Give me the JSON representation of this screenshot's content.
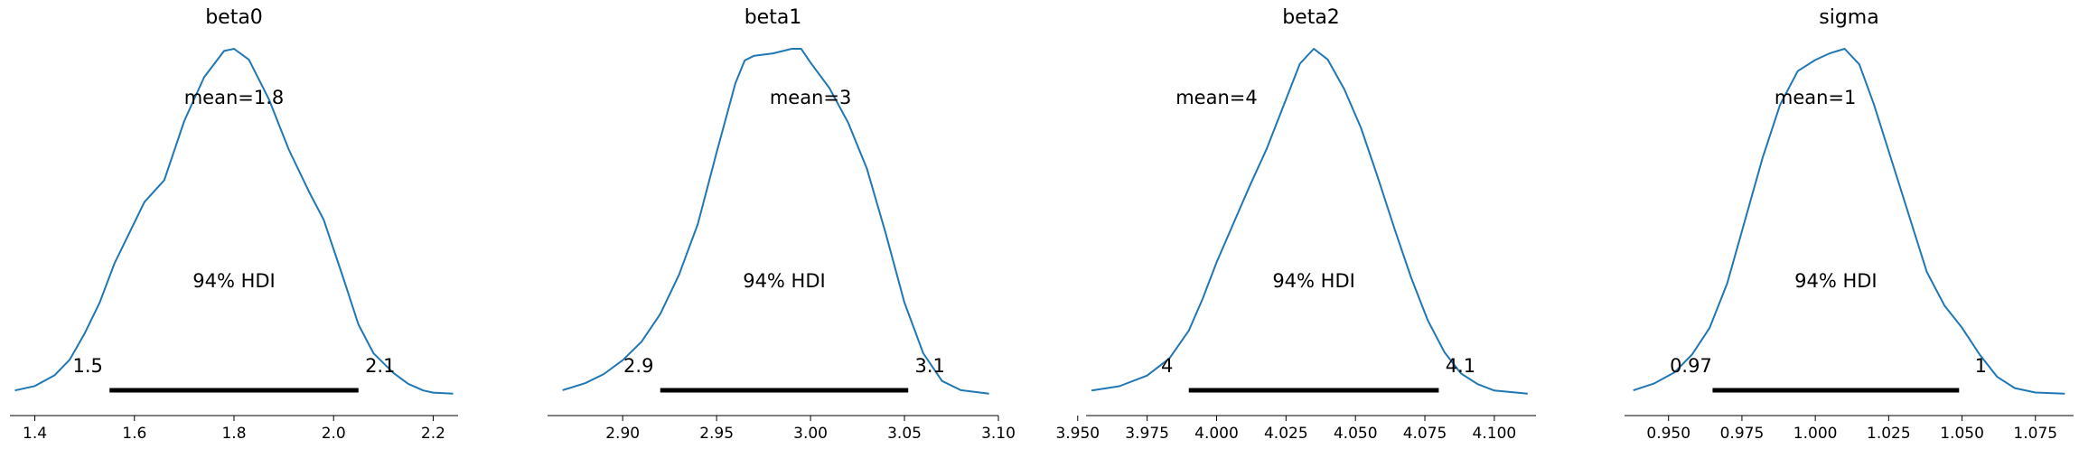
{
  "colors": {
    "line": "#1f77b4",
    "hdi": "#000000"
  },
  "hdi_label": "94% HDI",
  "chart_data": [
    {
      "type": "line",
      "title": "beta0",
      "mean_label": "mean=1.8",
      "mean": 1.8,
      "hdi": [
        1.55,
        2.05
      ],
      "hdi_low_label": "1.5",
      "hdi_high_label": "2.1",
      "xlim": [
        1.35,
        2.25
      ],
      "xticks": [
        1.4,
        1.6,
        1.8,
        2.0,
        2.2
      ],
      "xtick_labels": [
        "1.4",
        "1.6",
        "1.8",
        "2.0",
        "2.2"
      ],
      "x": [
        1.36,
        1.4,
        1.44,
        1.47,
        1.5,
        1.53,
        1.56,
        1.59,
        1.62,
        1.66,
        1.7,
        1.74,
        1.78,
        1.8,
        1.83,
        1.87,
        1.91,
        1.95,
        1.98,
        2.02,
        2.05,
        2.08,
        2.12,
        2.15,
        2.18,
        2.2,
        2.24
      ],
      "density": [
        0.02,
        0.04,
        0.09,
        0.16,
        0.28,
        0.42,
        0.6,
        0.74,
        0.88,
        0.98,
        1.25,
        1.45,
        1.57,
        1.58,
        1.53,
        1.35,
        1.12,
        0.93,
        0.8,
        0.53,
        0.32,
        0.19,
        0.1,
        0.05,
        0.02,
        0.01,
        0.005
      ]
    },
    {
      "type": "line",
      "title": "beta1",
      "mean_label": "mean=3",
      "mean": 3.0,
      "hdi": [
        2.92,
        3.052
      ],
      "hdi_low_label": "2.9",
      "hdi_high_label": "3.1",
      "xlim": [
        2.86,
        3.1
      ],
      "xticks": [
        2.9,
        2.95,
        3.0,
        3.05,
        3.1
      ],
      "xtick_labels": [
        "2.90",
        "2.95",
        "3.00",
        "3.05",
        "3.10"
      ],
      "x": [
        2.868,
        2.88,
        2.89,
        2.9,
        2.91,
        2.92,
        2.93,
        2.94,
        2.95,
        2.96,
        2.965,
        2.97,
        2.98,
        2.99,
        2.995,
        3.0,
        3.01,
        3.02,
        3.03,
        3.04,
        3.05,
        3.06,
        3.07,
        3.08,
        3.095
      ],
      "density": [
        0.02,
        0.05,
        0.09,
        0.15,
        0.23,
        0.35,
        0.52,
        0.74,
        1.05,
        1.35,
        1.45,
        1.47,
        1.48,
        1.5,
        1.5,
        1.44,
        1.33,
        1.18,
        0.98,
        0.7,
        0.4,
        0.18,
        0.06,
        0.02,
        0.005
      ]
    },
    {
      "type": "line",
      "title": "beta2",
      "mean_label": "mean=4",
      "mean": 4.0,
      "hdi": [
        3.99,
        4.08
      ],
      "hdi_low_label": "4",
      "hdi_high_label": "4.1",
      "xlim": [
        3.953,
        4.115
      ],
      "xticks": [
        3.95,
        3.975,
        4.0,
        4.025,
        4.05,
        4.075,
        4.1
      ],
      "xtick_labels": [
        "3.950",
        "3.975",
        "4.000",
        "4.025",
        "4.050",
        "4.075",
        "4.100"
      ],
      "x": [
        3.955,
        3.965,
        3.975,
        3.983,
        3.99,
        3.995,
        4.0,
        4.006,
        4.012,
        4.018,
        4.024,
        4.03,
        4.035,
        4.04,
        4.046,
        4.052,
        4.058,
        4.064,
        4.07,
        4.076,
        4.082,
        4.088,
        4.094,
        4.1,
        4.112
      ],
      "density": [
        0.02,
        0.04,
        0.09,
        0.17,
        0.3,
        0.45,
        0.62,
        0.8,
        0.98,
        1.15,
        1.35,
        1.55,
        1.62,
        1.57,
        1.43,
        1.25,
        1.02,
        0.78,
        0.55,
        0.35,
        0.2,
        0.1,
        0.05,
        0.02,
        0.005
      ]
    },
    {
      "type": "line",
      "title": "sigma",
      "mean_label": "mean=1",
      "mean": 1.0,
      "hdi": [
        0.965,
        1.049
      ],
      "hdi_low_label": "0.97",
      "hdi_high_label": "1",
      "xlim": [
        0.935,
        1.088
      ],
      "xticks": [
        0.95,
        0.975,
        1.0,
        1.025,
        1.05,
        1.075
      ],
      "xtick_labels": [
        "0.950",
        "0.975",
        "1.000",
        "1.025",
        "1.050",
        "1.075"
      ],
      "x": [
        0.938,
        0.945,
        0.952,
        0.958,
        0.964,
        0.97,
        0.976,
        0.982,
        0.988,
        0.994,
        1.0,
        1.005,
        1.01,
        1.015,
        1.02,
        1.026,
        1.032,
        1.038,
        1.044,
        1.05,
        1.056,
        1.062,
        1.068,
        1.075,
        1.085
      ],
      "density": [
        0.02,
        0.05,
        0.1,
        0.18,
        0.3,
        0.5,
        0.78,
        1.06,
        1.3,
        1.45,
        1.5,
        1.53,
        1.55,
        1.48,
        1.3,
        1.05,
        0.8,
        0.55,
        0.4,
        0.3,
        0.18,
        0.08,
        0.03,
        0.01,
        0.005
      ]
    }
  ]
}
